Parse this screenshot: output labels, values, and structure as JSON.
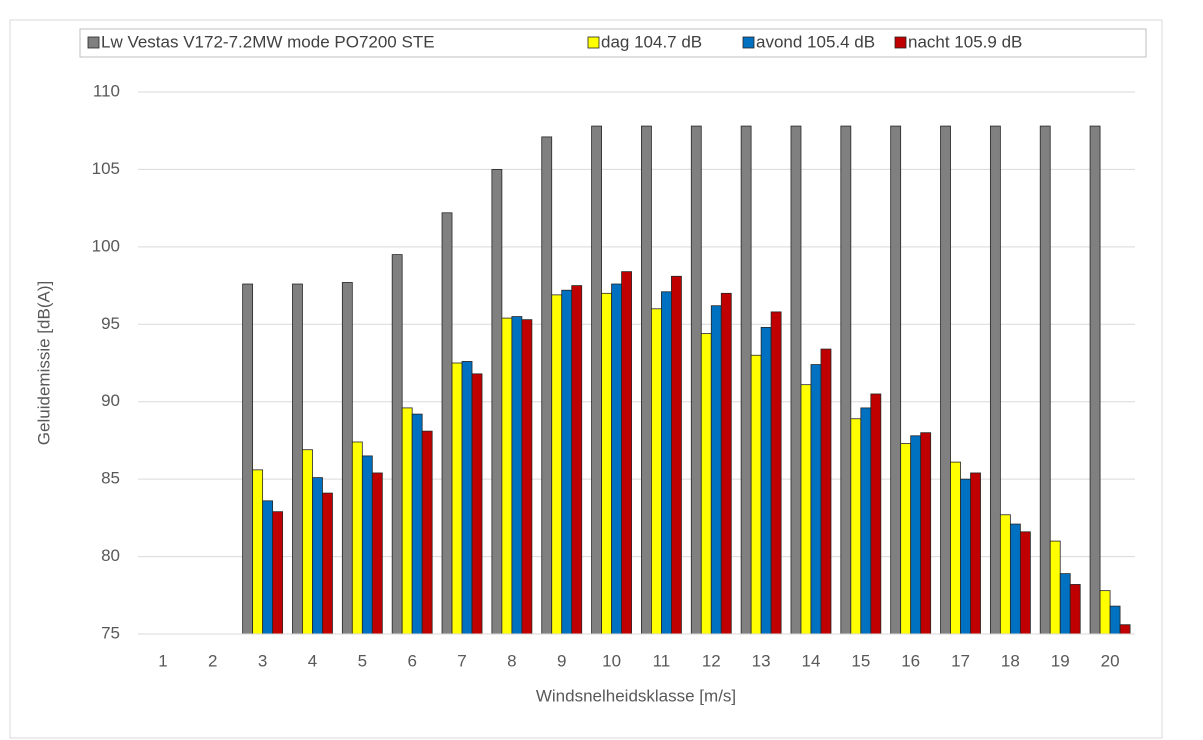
{
  "chart_data": {
    "type": "bar",
    "x_label": "Windsnelheidsklasse [m/s]",
    "y_label": "Geluidemissie [dB(A)]",
    "categories": [
      "1",
      "2",
      "3",
      "4",
      "5",
      "6",
      "7",
      "8",
      "9",
      "10",
      "11",
      "12",
      "13",
      "14",
      "15",
      "16",
      "17",
      "18",
      "19",
      "20"
    ],
    "series": [
      {
        "name": "Lw Vestas V172-7.2MW mode PO7200 STE",
        "color": "#808080",
        "values": [
          null,
          null,
          97.6,
          97.6,
          97.7,
          99.5,
          102.2,
          105.0,
          107.1,
          107.8,
          107.8,
          107.8,
          107.8,
          107.8,
          107.8,
          107.8,
          107.8,
          107.8,
          107.8,
          107.8
        ]
      },
      {
        "name": "dag 104.7 dB",
        "color": "#ffff00",
        "values": [
          null,
          null,
          85.6,
          86.9,
          87.4,
          89.6,
          92.5,
          95.4,
          96.9,
          97.0,
          96.0,
          94.4,
          93.0,
          91.1,
          88.9,
          87.3,
          86.1,
          82.7,
          81.0,
          77.8
        ]
      },
      {
        "name": "avond 105.4 dB",
        "color": "#0070c0",
        "values": [
          null,
          null,
          83.6,
          85.1,
          86.5,
          89.2,
          92.6,
          95.5,
          97.2,
          97.6,
          97.1,
          96.2,
          94.8,
          92.4,
          89.6,
          87.8,
          85.0,
          82.1,
          78.9,
          76.8
        ]
      },
      {
        "name": "nacht 105.9 dB",
        "color": "#c00000",
        "values": [
          null,
          null,
          82.9,
          84.1,
          85.4,
          88.1,
          91.8,
          95.3,
          97.5,
          98.4,
          98.1,
          97.0,
          95.8,
          93.4,
          90.5,
          88.0,
          85.4,
          81.6,
          78.2,
          75.6
        ]
      }
    ],
    "ylim": [
      75,
      110
    ],
    "yticks": [
      75,
      80,
      85,
      90,
      95,
      100,
      105,
      110
    ],
    "grid": true
  }
}
